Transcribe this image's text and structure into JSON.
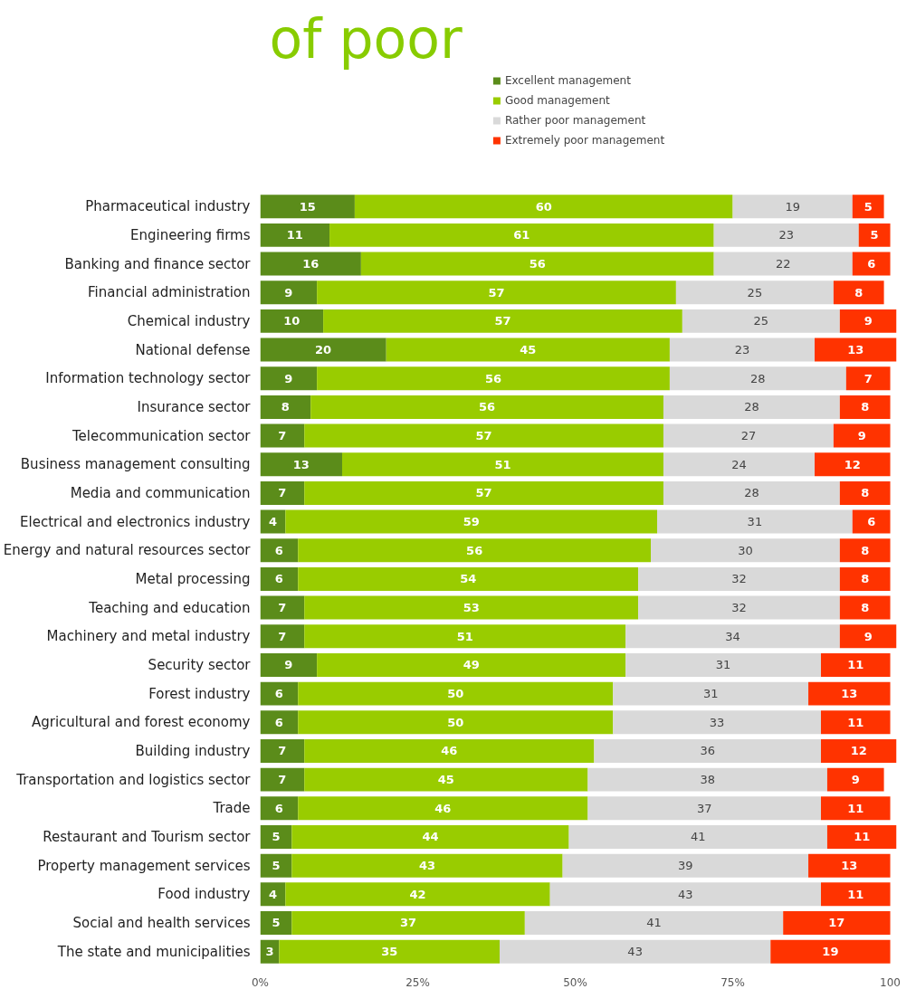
{
  "chart_data": {
    "type": "bar",
    "orientation": "horizontal",
    "stacked": true,
    "title": "of poor",
    "data_labels": true,
    "legend": "top",
    "grid": false,
    "categories": [
      "Pharmaceutical industry",
      "Engineering firms",
      "Banking and finance sector",
      "Financial administration",
      "Chemical industry",
      "National defense",
      "Information technology sector",
      "Insurance sector",
      "Telecommunication sector",
      "Business management consulting",
      "Media and communication",
      "Electrical and electronics industry",
      "Energy and natural resources sector",
      "Metal processing",
      "Teaching and education",
      "Machinery and metal industry",
      "Security sector",
      "Forest industry",
      "Agricultural and forest economy",
      "Building industry",
      "Transportation and logistics sector",
      "Trade",
      "Restaurant and Tourism sector",
      "Property management services",
      "Food industry",
      "Social and health services",
      "The state and municipalities"
    ],
    "series": [
      {
        "name": "Excellent management",
        "color": "#5b8c1a",
        "values": [
          15,
          11,
          16,
          9,
          10,
          20,
          9,
          8,
          7,
          13,
          7,
          4,
          6,
          6,
          7,
          7,
          9,
          6,
          6,
          7,
          7,
          6,
          5,
          5,
          4,
          5,
          3
        ]
      },
      {
        "name": "Good management",
        "color": "#99cc00",
        "values": [
          60,
          61,
          56,
          57,
          57,
          45,
          56,
          56,
          57,
          51,
          57,
          59,
          56,
          54,
          53,
          51,
          49,
          50,
          50,
          46,
          45,
          46,
          44,
          43,
          42,
          37,
          35
        ]
      },
      {
        "name": "Rather poor management",
        "color": "#d9d9d9",
        "values": [
          19,
          23,
          22,
          25,
          25,
          23,
          28,
          28,
          27,
          24,
          28,
          31,
          30,
          32,
          32,
          34,
          31,
          31,
          33,
          36,
          38,
          37,
          41,
          39,
          43,
          41,
          43
        ]
      },
      {
        "name": "Extremely poor management",
        "color": "#ff3300",
        "values": [
          5,
          5,
          6,
          8,
          9,
          13,
          7,
          8,
          9,
          12,
          8,
          6,
          8,
          8,
          8,
          9,
          11,
          13,
          11,
          12,
          9,
          11,
          11,
          13,
          11,
          17,
          19
        ]
      }
    ],
    "xlim": [
      0,
      101
    ],
    "xticks": [
      {
        "value": 0,
        "label": "0%"
      },
      {
        "value": 25,
        "label": "25%"
      },
      {
        "value": 50,
        "label": "50%"
      },
      {
        "value": 75,
        "label": "75%"
      },
      100
    ]
  }
}
